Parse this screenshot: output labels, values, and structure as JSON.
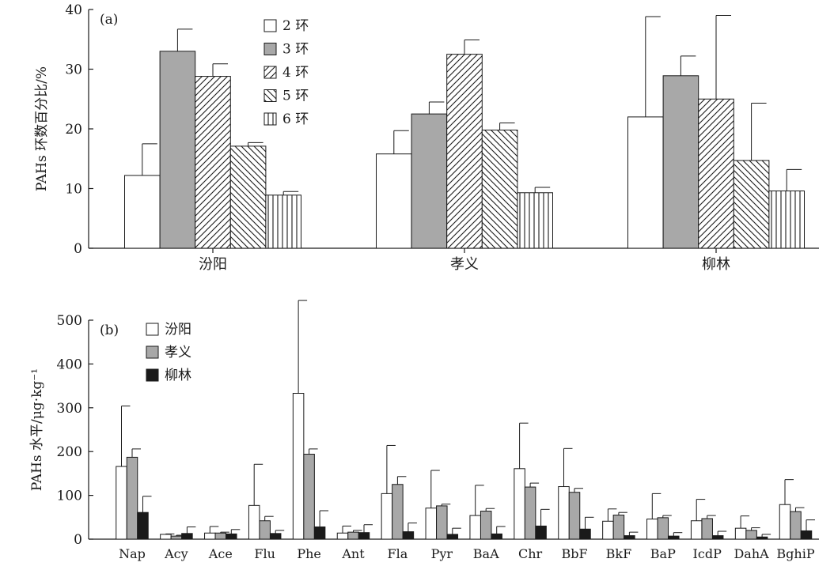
{
  "chart_data": [
    {
      "type": "bar",
      "panel_label": "(a)",
      "ylabel": "PAHs 环数百分比/%",
      "ylim": [
        0,
        40
      ],
      "yticks": [
        0,
        10,
        20,
        30,
        40
      ],
      "categories": [
        "汾阳",
        "孝义",
        "柳林"
      ],
      "legend_placement": "top-center",
      "series": [
        {
          "name": "2 环",
          "pattern": "blank",
          "values": [
            12.2,
            15.8,
            22.0
          ],
          "errors": [
            5.3,
            3.9,
            16.8
          ]
        },
        {
          "name": "3 环",
          "pattern": "gray",
          "values": [
            33.0,
            22.5,
            28.9
          ],
          "errors": [
            3.7,
            2.0,
            3.3
          ]
        },
        {
          "name": "4 环",
          "pattern": "diag-right",
          "values": [
            28.8,
            32.5,
            25.0
          ],
          "errors": [
            2.1,
            2.4,
            14.0
          ]
        },
        {
          "name": "5 环",
          "pattern": "diag-left",
          "values": [
            17.1,
            19.8,
            14.7
          ],
          "errors": [
            0.6,
            1.2,
            9.6
          ]
        },
        {
          "name": "6 环",
          "pattern": "vertical",
          "values": [
            8.9,
            9.3,
            9.6
          ],
          "errors": [
            0.6,
            0.9,
            3.6
          ]
        }
      ]
    },
    {
      "type": "bar",
      "panel_label": "(b)",
      "ylabel": "PAHs 水平/μg·kg⁻¹",
      "ylim": [
        0,
        500
      ],
      "yticks": [
        0,
        100,
        200,
        300,
        400,
        500
      ],
      "categories": [
        "Nap",
        "Acy",
        "Ace",
        "Flu",
        "Phe",
        "Ant",
        "Fla",
        "Pyr",
        "BaA",
        "Chr",
        "BbF",
        "BkF",
        "BaP",
        "IcdP",
        "DahA",
        "BghiP"
      ],
      "legend_placement": "top-left",
      "series": [
        {
          "name": "汾阳",
          "color": "#ffffff",
          "values": [
            166,
            11,
            14,
            77,
            333,
            14,
            104,
            71,
            54,
            161,
            120,
            41,
            46,
            42,
            25,
            79
          ],
          "errors": [
            138,
            1,
            15,
            94,
            212,
            16,
            110,
            86,
            69,
            104,
            87,
            28,
            58,
            49,
            28,
            57
          ]
        },
        {
          "name": "孝义",
          "color": "#a8a8a8",
          "values": [
            187,
            7,
            14,
            42,
            194,
            16,
            125,
            76,
            64,
            119,
            107,
            55,
            49,
            47,
            20,
            63
          ],
          "errors": [
            19,
            2,
            2,
            10,
            12,
            4,
            18,
            4,
            6,
            9,
            9,
            6,
            5,
            7,
            6,
            9
          ]
        },
        {
          "name": "柳林",
          "color": "#1a1a1a",
          "values": [
            61,
            13,
            12,
            13,
            28,
            15,
            17,
            11,
            12,
            30,
            23,
            8,
            7,
            8,
            5,
            19
          ],
          "errors": [
            37,
            15,
            10,
            7,
            37,
            18,
            20,
            14,
            17,
            38,
            27,
            8,
            8,
            10,
            6,
            25
          ]
        }
      ]
    }
  ]
}
